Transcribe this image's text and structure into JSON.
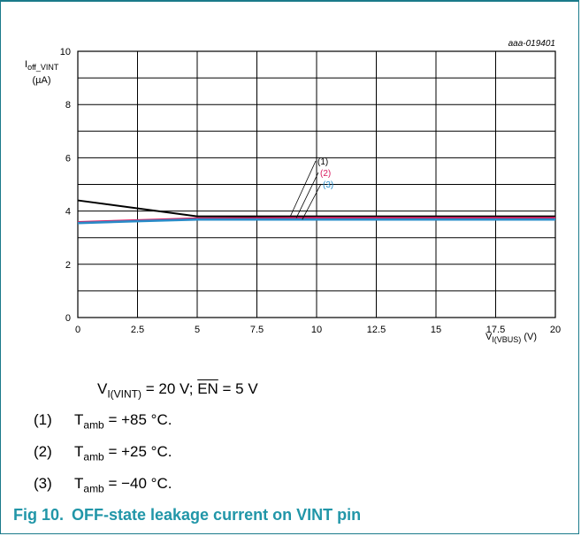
{
  "figure": {
    "id": "aaa-019401",
    "number_label": "Fig 10.",
    "title": "OFF-state leakage current on VINT pin"
  },
  "conditions": {
    "vint_sym": "V",
    "vint_sub": "I(VINT)",
    "vint_val": " = 20 V; ",
    "en_label": "EN",
    "en_val": " = 5 V"
  },
  "notes": [
    {
      "index": "(1)",
      "sym": "T",
      "sub": "amb",
      "text": " = +85 °C."
    },
    {
      "index": "(2)",
      "sym": "T",
      "sub": "amb",
      "text": " = +25 °C."
    },
    {
      "index": "(3)",
      "sym": "T",
      "sub": "amb",
      "text": " = −40 °C."
    }
  ],
  "colors": {
    "frame": "#1a7a8a",
    "caption": "#2196a8",
    "series_1": "#000000",
    "series_2": "#d81b60",
    "series_3": "#2a8cc8"
  },
  "chart_data": {
    "type": "line",
    "x_label_sym": "V",
    "x_label_sub": "I(VBUS)",
    "x_label_unit": "(V)",
    "y_label_sym": "I",
    "y_label_sub": "off_VINT",
    "y_label_unit": "(µA)",
    "xlim": [
      0,
      20
    ],
    "ylim": [
      0,
      10
    ],
    "x_ticks": [
      0,
      2.5,
      5,
      7.5,
      10,
      12.5,
      15,
      17.5,
      20
    ],
    "y_ticks": [
      0,
      2,
      4,
      6,
      8,
      10
    ],
    "x_minor_gridlines": [],
    "y_minor_gridlines": [
      1,
      3,
      5,
      7,
      9
    ],
    "grid": true,
    "series": [
      {
        "name": "(1)",
        "color": "#000000",
        "x": [
          0,
          5,
          10,
          15,
          20
        ],
        "y": [
          4.4,
          3.8,
          3.8,
          3.8,
          3.8
        ]
      },
      {
        "name": "(2)",
        "color": "#d81b60",
        "x": [
          0,
          2.5,
          5,
          10,
          15,
          20
        ],
        "y": [
          3.58,
          3.65,
          3.72,
          3.74,
          3.74,
          3.74
        ]
      },
      {
        "name": "(3)",
        "color": "#2a8cc8",
        "x": [
          0,
          2.5,
          5,
          10,
          15,
          20
        ],
        "y": [
          3.55,
          3.62,
          3.68,
          3.68,
          3.68,
          3.68
        ]
      }
    ],
    "annotations": [
      {
        "label": "(1)",
        "series": 0,
        "at_x": 8.9
      },
      {
        "label": "(2)",
        "series": 1,
        "at_x": 9.15
      },
      {
        "label": "(3)",
        "series": 2,
        "at_x": 9.4
      }
    ]
  }
}
